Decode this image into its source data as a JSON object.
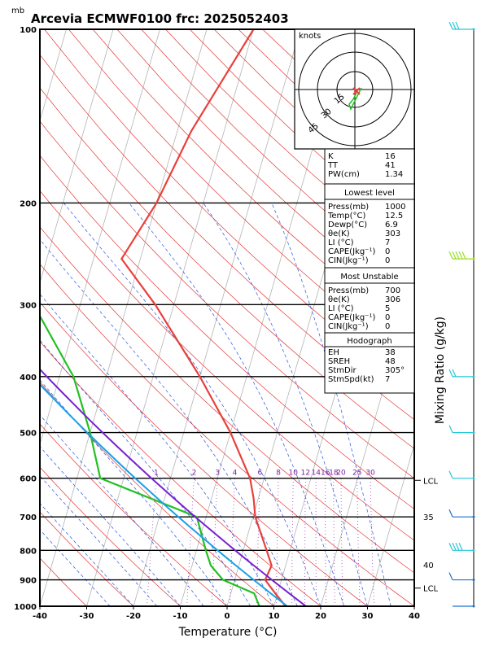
{
  "title": "Arcevia ECMWF0100 frc: 2025052403",
  "chart_data": {
    "type": "skew-t",
    "title": "Arcevia ECMWF0100 frc: 2025052403",
    "y_unit": "mb",
    "xlabel": "Temperature (°C)",
    "right_label": "Mixing Ratio (g/kg)",
    "x_ticks": [
      -40,
      -30,
      -20,
      -10,
      0,
      10,
      20,
      30,
      40
    ],
    "xlim": [
      -40,
      40
    ],
    "pressure_ticks": [
      100,
      200,
      300,
      400,
      500,
      600,
      700,
      800,
      900,
      1000
    ],
    "ylim_mb": [
      1000,
      100
    ],
    "series": [
      {
        "name": "",
        "color": "#e8403b",
        "points": [
          [
            1000,
            12.5
          ],
          [
            950,
            9.5
          ],
          [
            900,
            6.5
          ],
          [
            850,
            7.0
          ],
          [
            800,
            5.0
          ],
          [
            700,
            0.5
          ],
          [
            650,
            -1.0
          ],
          [
            600,
            -3.0
          ],
          [
            500,
            -10.0
          ],
          [
            400,
            -20.0
          ],
          [
            300,
            -34.0
          ],
          [
            250,
            -44.0
          ],
          [
            200,
            -40.0
          ],
          [
            150,
            -37.0
          ],
          [
            100,
            -30.0
          ]
        ]
      },
      {
        "name": "",
        "color": "#22c022",
        "points": [
          [
            1000,
            6.9
          ],
          [
            950,
            5.0
          ],
          [
            900,
            -2.5
          ],
          [
            850,
            -6.0
          ],
          [
            800,
            -8.0
          ],
          [
            700,
            -12.0
          ],
          [
            600,
            -35.0
          ],
          [
            500,
            -40.0
          ],
          [
            400,
            -47.0
          ],
          [
            300,
            -60.0
          ],
          [
            250,
            -65.0
          ],
          [
            200,
            -70.0
          ],
          [
            150,
            -75.0
          ],
          [
            100,
            -80.0
          ]
        ]
      }
    ],
    "mixing_ratio_labels": [
      "1",
      "2",
      "3",
      "4",
      "6",
      "8",
      "10",
      "12",
      "14",
      "16",
      "18",
      "20",
      "25",
      "30"
    ],
    "side_labels": [
      "LCL",
      "35",
      "40",
      "LCL"
    ],
    "hodograph": {
      "unit": "knots",
      "ring_labels": [
        "15",
        "30",
        "45"
      ]
    },
    "indices": [
      {
        "label": "K",
        "value": "16"
      },
      {
        "label": "TT",
        "value": "41"
      },
      {
        "label": "PW(cm)",
        "value": "1.34"
      }
    ],
    "lowest_level": {
      "heading": "Lowest level",
      "rows": [
        {
          "label": "Press(mb)",
          "value": "1000"
        },
        {
          "label": "Temp(°C)",
          "value": "12.5"
        },
        {
          "label": "Dewp(°C)",
          "value": "6.9"
        },
        {
          "label": "θe(K)",
          "value": "303"
        },
        {
          "label": "LI (°C)",
          "value": "7"
        },
        {
          "label": "CAPE(Jkg⁻¹)",
          "value": "0"
        },
        {
          "label": "CIN(Jkg⁻¹)",
          "value": "0"
        }
      ]
    },
    "most_unstable": {
      "heading": "Most Unstable",
      "rows": [
        {
          "label": "Press(mb)",
          "value": "700"
        },
        {
          "label": "θe(K)",
          "value": "306"
        },
        {
          "label": "LI (°C)",
          "value": "5"
        },
        {
          "label": "CAPE(Jkg⁻¹)",
          "value": "0"
        },
        {
          "label": "CIN(Jkg⁻¹)",
          "value": "0"
        }
      ]
    },
    "hodograph_box": {
      "heading": "Hodograph",
      "rows": [
        {
          "label": "EH",
          "value": "38"
        },
        {
          "label": "SREH",
          "value": "48"
        },
        {
          "label": "StmDir",
          "value": "305°"
        },
        {
          "label": "StmSpd(kt)",
          "value": "7"
        }
      ]
    }
  }
}
